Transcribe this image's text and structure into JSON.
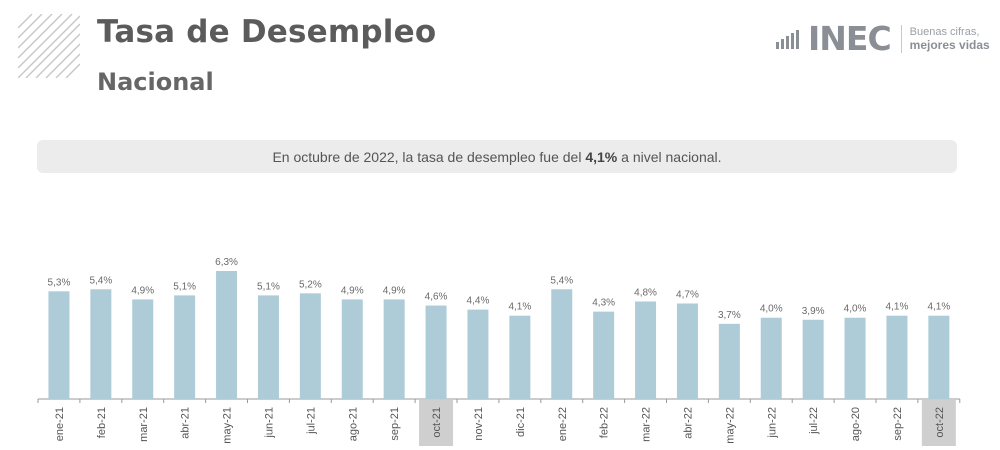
{
  "header": {
    "title": "Tasa de Desempleo",
    "subtitle": "Nacional"
  },
  "logo": {
    "name": "INEC",
    "tagline_line1": "Buenas cifras,",
    "tagline_line2": "mejores vidas",
    "icon": "bar-signal-icon"
  },
  "banner": {
    "text_before": "En octubre de 2022, la tasa de desempleo fue del ",
    "highlight": "4,1%",
    "text_after": " a nivel nacional."
  },
  "colors": {
    "bar": "#aecbd8",
    "highlight_label_bg": "#cfcfcf",
    "axis": "#9a9a9a",
    "title": "#5b5b5b"
  },
  "chart_data": {
    "type": "bar",
    "categories": [
      "ene-21",
      "feb-21",
      "mar-21",
      "abr-21",
      "may-21",
      "jun-21",
      "jul-21",
      "ago-21",
      "sep-21",
      "oct-21",
      "nov-21",
      "dic-21",
      "ene-22",
      "feb-22",
      "mar-22",
      "abr-22",
      "may-22",
      "jun-22",
      "jul-22",
      "ago-20",
      "sep-22",
      "oct-22"
    ],
    "values": [
      5.3,
      5.4,
      4.9,
      5.1,
      6.3,
      5.1,
      5.2,
      4.9,
      4.9,
      4.6,
      4.4,
      4.1,
      5.4,
      4.3,
      4.8,
      4.7,
      3.7,
      4.0,
      3.9,
      4.0,
      4.1,
      4.1
    ],
    "value_labels": [
      "5,3%",
      "5,4%",
      "4,9%",
      "5,1%",
      "6,3%",
      "5,1%",
      "5,2%",
      "4,9%",
      "4,9%",
      "4,6%",
      "4,4%",
      "4,1%",
      "5,4%",
      "4,3%",
      "4,8%",
      "4,7%",
      "3,7%",
      "4,0%",
      "3,9%",
      "4,0%",
      "4,1%",
      "4,1%"
    ],
    "highlighted_categories": [
      "oct-21",
      "oct-22"
    ],
    "title": "",
    "xlabel": "",
    "ylabel": "",
    "ylim": [
      0,
      6.3
    ],
    "grid": false,
    "legend": "none"
  }
}
